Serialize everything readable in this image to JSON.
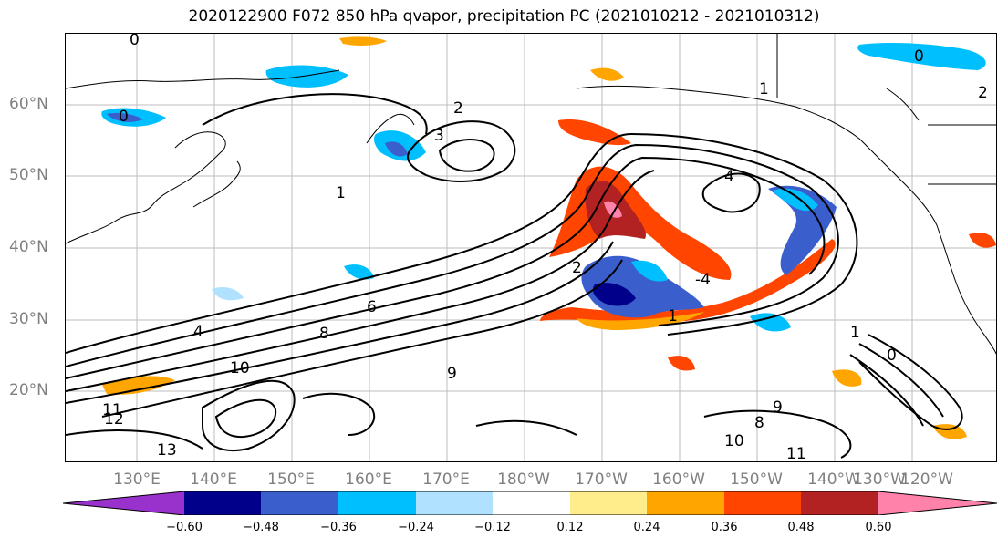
{
  "title": "2020122900 F072 850 hPa qvapor, precipitation PC (2021010212 - 2021010312)",
  "lat_labels": [
    "60°N",
    "50°N",
    "40°N",
    "30°N",
    "20°N"
  ],
  "lon_labels": [
    "130°E",
    "140°E",
    "150°E",
    "160°E",
    "170°E",
    "180°W",
    "170°W",
    "160°W",
    "150°W",
    "140°W",
    "130°W",
    "120°W"
  ],
  "colorbar": {
    "colors": [
      "#9932cc",
      "#00008b",
      "#3a5fcd",
      "#00bfff",
      "#b0e2ff",
      "#ffffff",
      "#ffec8b",
      "#ffa500",
      "#ff4500",
      "#b22222",
      "#ff82ab"
    ],
    "ticks": [
      "−0.60",
      "−0.48",
      "−0.36",
      "−0.24",
      "−0.12",
      "0.12",
      "0.24",
      "0.36",
      "0.48",
      "0.60"
    ]
  },
  "contour_labels": [
    "0",
    "0",
    "1",
    "2",
    "3",
    "4",
    "6",
    "8",
    "9",
    "10",
    "11",
    "12",
    "13",
    "2",
    "1",
    "4",
    "8",
    "9",
    "10",
    "11",
    "1",
    "0",
    "-4",
    "2",
    "1",
    "0"
  ]
}
